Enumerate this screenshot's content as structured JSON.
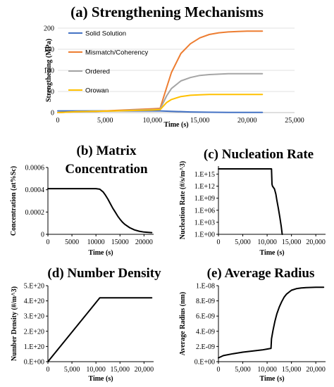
{
  "chart_data": [
    {
      "id": "a",
      "type": "line",
      "title": "(a) Strengthening Mechanisms",
      "xlabel": "Time (s)",
      "ylabel": "Strengthening (MPa)",
      "xlim": [
        0,
        25000
      ],
      "ylim": [
        0,
        200
      ],
      "xticks": [
        "0",
        "5,000",
        "10,000",
        "15,000",
        "20,000",
        "25,000"
      ],
      "yticks": [
        "0",
        "50",
        "100",
        "150",
        "200"
      ],
      "legend_position": "inside-left",
      "series": [
        {
          "name": "Solid Solution",
          "color": "#4472C4",
          "x": [
            0,
            5000,
            10800,
            12000,
            14000,
            16000,
            18000,
            20000,
            21600
          ],
          "y": [
            4,
            4,
            4,
            3,
            1.5,
            0.8,
            0.5,
            0.4,
            0.3
          ]
        },
        {
          "name": "Mismatch/Coherency",
          "color": "#ED7D31",
          "x": [
            0,
            2000,
            4000,
            6000,
            8000,
            10000,
            10800,
            11500,
            12000,
            13000,
            14000,
            15000,
            16000,
            17000,
            18000,
            19000,
            20000,
            21600
          ],
          "y": [
            0,
            2,
            3,
            5,
            7,
            9,
            10,
            60,
            95,
            140,
            163,
            177,
            185,
            189,
            191,
            192,
            193,
            193
          ]
        },
        {
          "name": "Ordered",
          "color": "#A5A5A5",
          "x": [
            0,
            2000,
            4000,
            6000,
            8000,
            10000,
            10800,
            11500,
            12000,
            13000,
            14000,
            15000,
            16000,
            17000,
            18000,
            19000,
            20000,
            21600
          ],
          "y": [
            0,
            2,
            3,
            4,
            6,
            7,
            8,
            40,
            57,
            75,
            83,
            88,
            90,
            91,
            92,
            92,
            92,
            92
          ]
        },
        {
          "name": "Orowan",
          "color": "#FFC000",
          "x": [
            0,
            2000,
            4000,
            6000,
            8000,
            10000,
            10800,
            11500,
            12000,
            13000,
            14000,
            15000,
            16000,
            17000,
            18000,
            20000,
            21600
          ],
          "y": [
            0,
            2,
            3,
            4,
            5,
            6,
            7,
            24,
            31,
            38,
            41,
            42,
            43,
            43,
            43,
            43,
            43
          ]
        }
      ]
    },
    {
      "id": "b",
      "type": "line",
      "title": [
        "(b) Matrix",
        "Concentration"
      ],
      "xlabel": "Time (s)",
      "ylabel": "Concentration (at%Sc)",
      "xlim": [
        0,
        22000
      ],
      "ylim": [
        0,
        0.0006
      ],
      "xticks": [
        "0",
        "5000",
        "10000",
        "15000",
        "20000"
      ],
      "yticks": [
        "0",
        "0.0002",
        "0.0004",
        "0.0006"
      ],
      "series": [
        {
          "color": "#000000",
          "x": [
            0,
            5000,
            10000,
            10800,
            11500,
            12000,
            12500,
            13000,
            13500,
            14000,
            14500,
            15000,
            15500,
            16000,
            17000,
            18000,
            19000,
            20000,
            21600
          ],
          "y": [
            0.00041,
            0.00041,
            0.00041,
            0.000405,
            0.00038,
            0.00035,
            0.000315,
            0.000275,
            0.000235,
            0.0002,
            0.000165,
            0.000135,
            0.00011,
            9e-05,
            6e-05,
            4e-05,
            2.8e-05,
            2e-05,
            1.5e-05
          ]
        }
      ]
    },
    {
      "id": "c",
      "type": "line",
      "title": "(c) Nucleation Rate",
      "xlabel": "Time (s)",
      "ylabel": "Nucleation Rate (#/s/m^3)",
      "xlim": [
        0,
        22000
      ],
      "ylim_log10": [
        0,
        17
      ],
      "log_scale": true,
      "xticks": [
        "0",
        "5,000",
        "10,000",
        "15,000",
        "20,000"
      ],
      "yticks": [
        "1.E+00",
        "1.E+03",
        "1.E+06",
        "1.E+09",
        "1.E+12",
        "1.E+15"
      ],
      "series": [
        {
          "color": "#000000",
          "x": [
            0,
            2000,
            4000,
            6000,
            8000,
            9000,
            10000,
            10600,
            10900,
            11000,
            11100,
            11500,
            11800,
            12000,
            12300,
            12600,
            12900,
            13100
          ],
          "y_log10": [
            16.3,
            16.3,
            16.3,
            16.3,
            16.3,
            16.3,
            16.3,
            16.3,
            16.3,
            12.5,
            12.0,
            11.3,
            10.0,
            8.5,
            6.5,
            4.3,
            2.0,
            0
          ]
        }
      ]
    },
    {
      "id": "d",
      "type": "line",
      "title": "(d) Number Density",
      "xlabel": "Time (s)",
      "ylabel": "Number Density (#/m^3)",
      "xlim": [
        0,
        22000
      ],
      "ylim": [
        0,
        5e+20
      ],
      "xticks": [
        "0",
        "5,000",
        "10,000",
        "15,000",
        "20,000"
      ],
      "yticks": [
        "0.E+00",
        "1.E+20",
        "2.E+20",
        "3.E+20",
        "4.E+20",
        "5.E+20"
      ],
      "series": [
        {
          "color": "#000000",
          "x": [
            0,
            10800,
            21600
          ],
          "y": [
            0,
            4.2e+20,
            4.2e+20
          ]
        }
      ]
    },
    {
      "id": "e",
      "type": "line",
      "title": "(e) Average Radius",
      "xlabel": "Time (s)",
      "ylabel": "Average Radius (nm)",
      "xlim": [
        0,
        22000
      ],
      "ylim": [
        0,
        1e-08
      ],
      "xticks": [
        "0",
        "5,000",
        "10,000",
        "15,000",
        "20,000"
      ],
      "yticks": [
        "0.E+00",
        "2.E-09",
        "4.E-09",
        "6.E-09",
        "8.E-09",
        "1.E-08"
      ],
      "series": [
        {
          "color": "#000000",
          "x": [
            0,
            1000,
            3000,
            5000,
            7000,
            9000,
            10800,
            10900,
            11200,
            11600,
            12000,
            12500,
            13000,
            13500,
            14000,
            15000,
            16000,
            17000,
            18000,
            20000,
            21600
          ],
          "y": [
            5e-10,
            8e-10,
            1.05e-09,
            1.25e-09,
            1.4e-09,
            1.55e-09,
            1.75e-09,
            3e-09,
            4.1e-09,
            5.3e-09,
            6.3e-09,
            7.2e-09,
            7.9e-09,
            8.5e-09,
            8.9e-09,
            9.4e-09,
            9.6e-09,
            9.7e-09,
            9.75e-09,
            9.8e-09,
            9.8e-09
          ]
        }
      ]
    }
  ]
}
